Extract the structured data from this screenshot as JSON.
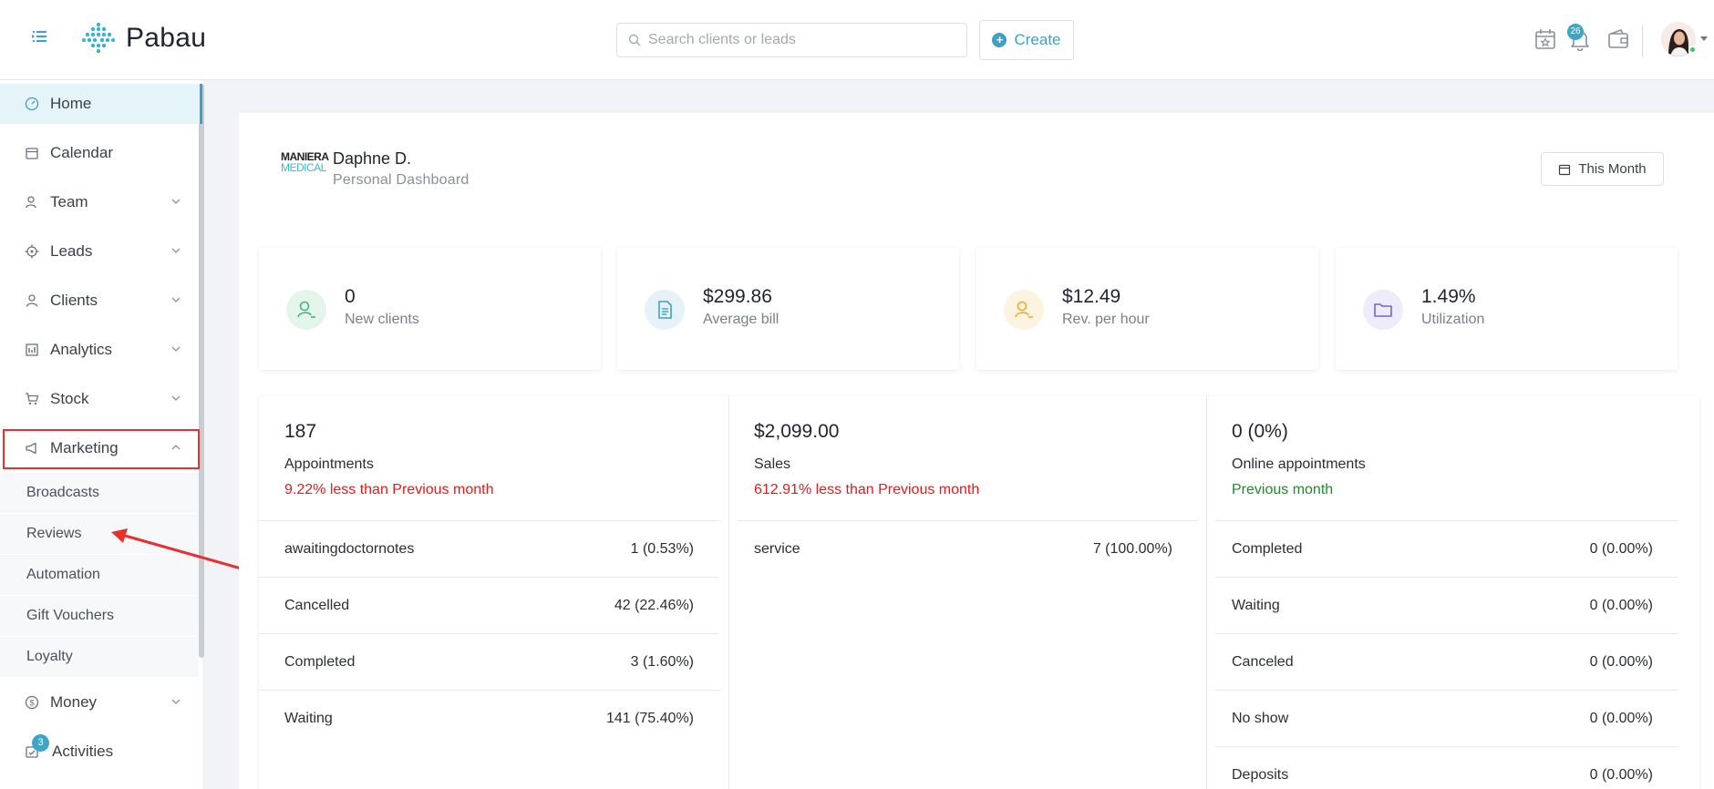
{
  "app": {
    "name": "Pabau"
  },
  "search": {
    "placeholder": "Search clients or leads"
  },
  "header": {
    "create_label": "Create",
    "notification_count": "26"
  },
  "sidebar": {
    "items": [
      {
        "label": "Home"
      },
      {
        "label": "Calendar"
      },
      {
        "label": "Team"
      },
      {
        "label": "Leads"
      },
      {
        "label": "Clients"
      },
      {
        "label": "Analytics"
      },
      {
        "label": "Stock"
      },
      {
        "label": "Marketing"
      },
      {
        "label": "Money"
      },
      {
        "label": "Activities",
        "badge": "3"
      }
    ],
    "marketing_sub": [
      "Broadcasts",
      "Reviews",
      "Automation",
      "Gift Vouchers",
      "Loyalty"
    ]
  },
  "dashboard": {
    "org_logo_top": "MANIERA",
    "org_logo_bottom": "MEDICAL",
    "user_name": "Daphne D.",
    "subtitle": "Personal Dashboard",
    "period": "This Month"
  },
  "stats": [
    {
      "value": "0",
      "label": "New clients"
    },
    {
      "value": "$299.86",
      "label": "Average bill"
    },
    {
      "value": "$12.49",
      "label": "Rev. per hour"
    },
    {
      "value": "1.49%",
      "label": "Utilization"
    }
  ],
  "panels": [
    {
      "value": "187",
      "label": "Appointments",
      "comparison": "9.22% less than Previous month",
      "rows": [
        {
          "name": "awaitingdoctornotes",
          "value": "1 (0.53%)"
        },
        {
          "name": "Cancelled",
          "value": "42 (22.46%)"
        },
        {
          "name": "Completed",
          "value": "3 (1.60%)"
        },
        {
          "name": "Waiting",
          "value": "141 (75.40%)"
        }
      ]
    },
    {
      "value": "$2,099.00",
      "label": "Sales",
      "comparison": "612.91% less than Previous month",
      "rows": [
        {
          "name": "service",
          "value": "7 (100.00%)"
        }
      ]
    },
    {
      "value": "0 (0%)",
      "label": "Online appointments",
      "comparison": "Previous month",
      "rows": [
        {
          "name": "Completed",
          "value": "0 (0.00%)"
        },
        {
          "name": "Waiting",
          "value": "0 (0.00%)"
        },
        {
          "name": "Canceled",
          "value": "0 (0.00%)"
        },
        {
          "name": "No show",
          "value": "0 (0.00%)"
        },
        {
          "name": "Deposits",
          "value": "0 (0.00%)"
        }
      ]
    }
  ],
  "colors": {
    "accent": "#40a0c4",
    "highlight_red": "#e8302f",
    "negative": "#e21c1c",
    "positive": "#1f8a2b"
  }
}
